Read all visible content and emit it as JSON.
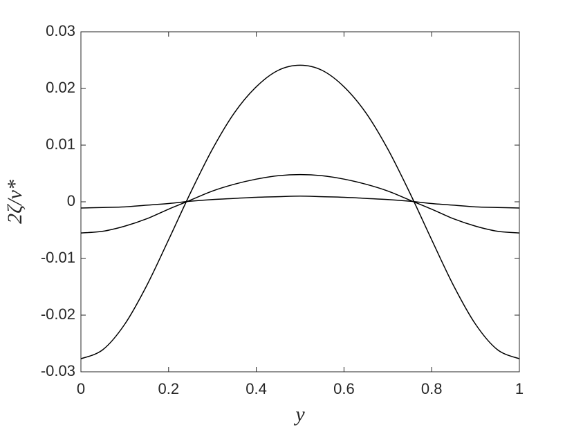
{
  "chart_data": {
    "type": "line",
    "xlabel": "y",
    "ylabel": "2ζ/v*",
    "x": [
      0,
      0.05,
      0.1,
      0.15,
      0.2,
      0.25,
      0.3,
      0.35,
      0.4,
      0.45,
      0.5,
      0.55,
      0.6,
      0.65,
      0.7,
      0.75,
      0.8,
      0.85,
      0.9,
      0.95,
      1
    ],
    "series": [
      {
        "color": "#000000",
        "values": [
          -0.0277,
          -0.0261,
          -0.0216,
          -0.0148,
          -0.0067,
          0.0016,
          0.0093,
          0.0157,
          0.0203,
          0.0232,
          0.0241,
          0.0232,
          0.0203,
          0.0157,
          0.0093,
          0.0016,
          -0.0067,
          -0.0148,
          -0.0216,
          -0.0261,
          -0.0277
        ]
      },
      {
        "color": "#000000",
        "values": [
          -0.0055,
          -0.0052,
          -0.0043,
          -0.003,
          -0.0013,
          0.0003,
          0.0019,
          0.0031,
          0.004,
          0.0046,
          0.0048,
          0.0046,
          0.004,
          0.0031,
          0.0019,
          0.0003,
          -0.0013,
          -0.003,
          -0.0043,
          -0.0052,
          -0.0055
        ]
      },
      {
        "color": "#000000",
        "values": [
          -0.0011,
          -0.001,
          -0.0009,
          -0.0006,
          -0.0003,
          0.0001,
          0.0004,
          0.0006,
          0.0008,
          0.0009,
          0.001,
          0.0009,
          0.0008,
          0.0006,
          0.0004,
          0.0001,
          -0.0003,
          -0.0006,
          -0.0009,
          -0.001,
          -0.0011
        ]
      }
    ],
    "xlim": [
      0,
      1
    ],
    "xticks": [
      0,
      0.2,
      0.4,
      0.6,
      0.8,
      1
    ],
    "ylim": [
      -0.03,
      0.03
    ],
    "yticks": [
      -0.03,
      -0.02,
      -0.01,
      0,
      0.01,
      0.02,
      0.03
    ],
    "grid": false
  }
}
